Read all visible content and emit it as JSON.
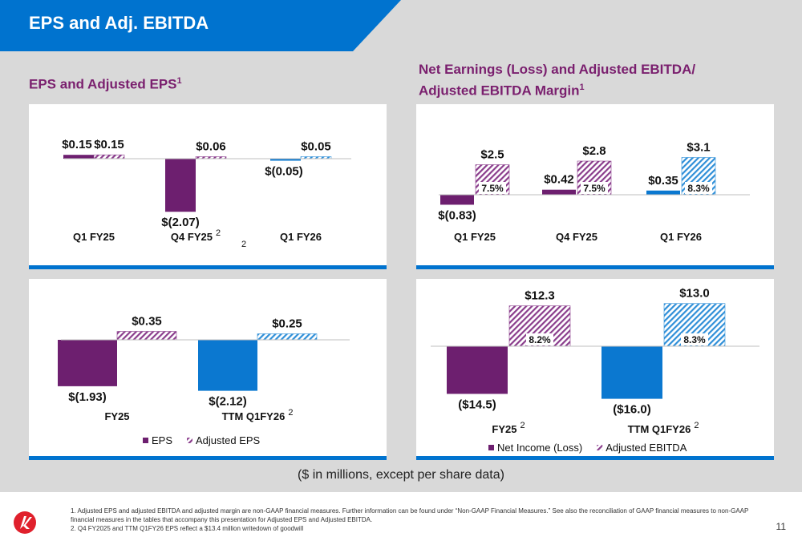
{
  "page_title": "EPS and Adj. EBITDA",
  "left_section_title": "EPS and Adjusted EPS",
  "left_section_sup": "1",
  "right_section_title_line1": "Net Earnings (Loss) and Adjusted EBITDA/",
  "right_section_title_line2": "Adjusted EBITDA Margin",
  "right_section_sup": "1",
  "units_note": "($ in millions, except per share data)",
  "footnotes": [
    "1. Adjusted EPS and adjusted EBITDA and adjusted margin are non-GAAP financial measures. Further information can be found under “Non-GAAP Financial Measures.” See also the reconciliation of GAAP financial measures to non-GAAP financial measures in the tables that accompany this presentation for Adjusted EPS and Adjusted EBITDA.",
    "2. Q4 FY2025 and TTM Q1FY26 EPS reflect a $13.4 million writedown of goodwill"
  ],
  "page_number": "11",
  "colors": {
    "banner": "#0073cf",
    "purple": "#6d1f6f",
    "blue": "#0b78d0",
    "hatch_purple": "#8a3d8c",
    "hatch_blue": "#2f8fd8",
    "rule": "#0073cf"
  },
  "chart_data": [
    {
      "id": "eps-quarterly",
      "type": "bar",
      "categories": [
        "Q1 FY25",
        "Q4 FY25",
        "Q1 FY26"
      ],
      "category_sups": [
        "",
        "2",
        ""
      ],
      "series": [
        {
          "name": "EPS",
          "values": [
            0.15,
            -2.07,
            -0.05
          ],
          "labels": [
            "$0.15",
            "$(2.07)",
            "$(0.05)"
          ]
        },
        {
          "name": "Adjusted EPS",
          "values": [
            0.15,
            0.06,
            0.05
          ],
          "labels": [
            "$0.15",
            "$0.06",
            "$0.05"
          ]
        }
      ],
      "stray_sup": "2",
      "ylim": [
        -2.5,
        0.6
      ]
    },
    {
      "id": "net-earnings-quarterly",
      "type": "bar",
      "categories": [
        "Q1 FY25",
        "Q4 FY25",
        "Q1 FY26"
      ],
      "series": [
        {
          "name": "Net Income (Loss)",
          "values": [
            -0.83,
            0.42,
            0.35
          ],
          "labels": [
            "$(0.83)",
            "$0.42",
            "$0.35"
          ]
        },
        {
          "name": "Adjusted EBITDA",
          "values": [
            2.5,
            2.8,
            3.1
          ],
          "labels": [
            "$2.5",
            "$2.8",
            "$3.1"
          ],
          "margins": [
            "7.5%",
            "7.5%",
            "8.3%"
          ]
        }
      ],
      "ylim": [
        -1.5,
        4.0
      ]
    },
    {
      "id": "eps-annual",
      "type": "bar",
      "categories": [
        "FY25",
        "TTM Q1FY26"
      ],
      "category_sups": [
        "",
        "2"
      ],
      "series": [
        {
          "name": "EPS",
          "values": [
            -1.93,
            -2.12
          ],
          "labels": [
            "$(1.93)",
            "$(2.12)"
          ]
        },
        {
          "name": "Adjusted EPS",
          "values": [
            0.35,
            0.25
          ],
          "labels": [
            "$0.35",
            "$0.25"
          ]
        }
      ],
      "legend": [
        "EPS",
        "Adjusted EPS"
      ],
      "legend_placement": "bottom"
    },
    {
      "id": "net-earnings-annual",
      "type": "bar",
      "categories": [
        "FY25",
        "TTM Q1FY26"
      ],
      "category_sups": [
        "2",
        "2"
      ],
      "series": [
        {
          "name": "Net Income (Loss)",
          "values": [
            -14.5,
            -16.0
          ],
          "labels": [
            "($14.5)",
            "($16.0)"
          ]
        },
        {
          "name": "Adjusted EBITDA",
          "values": [
            12.3,
            13.0
          ],
          "labels": [
            "$12.3",
            "$13.0"
          ],
          "margins": [
            "8.2%",
            "8.3%"
          ]
        }
      ],
      "legend": [
        "Net Income (Loss)",
        "Adjusted EBITDA"
      ],
      "legend_placement": "bottom"
    }
  ]
}
